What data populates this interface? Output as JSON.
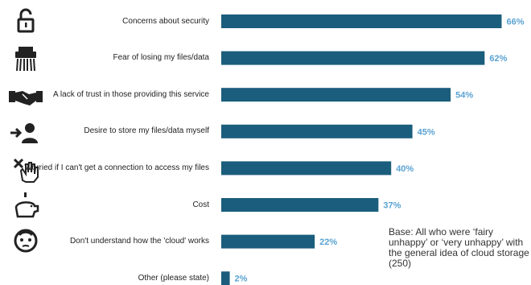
{
  "chart_data": {
    "type": "bar",
    "orientation": "horizontal",
    "categories": [
      "Concerns about security",
      "Fear of losing my files/data",
      "A lack of trust in those providing this service",
      "Desire to store my files/data myself",
      "Worried if I can't get a connection to access my files",
      "Cost",
      "Don't understand how the 'cloud' works",
      "Other (please state)"
    ],
    "values": [
      66,
      62,
      54,
      45,
      40,
      37,
      22,
      2
    ],
    "value_labels": [
      "66%",
      "62%",
      "54%",
      "45%",
      "40%",
      "37%",
      "22%",
      "2%"
    ],
    "xlim": [
      0,
      70
    ],
    "grid": false,
    "bar_color": "#1b5d7c",
    "label_color": "#5aa3d2",
    "title": "",
    "xlabel": "",
    "ylabel": ""
  },
  "icons": [
    "padlock-icon",
    "shredder-icon",
    "handshake-icon",
    "person-arrow-icon",
    "crossed-hand-icon",
    "piggy-bank-icon",
    "confused-face-icon",
    "none"
  ],
  "note": "Base: All who were ‘fairy unhappy’ or ‘very unhappy’ with the general idea of cloud storage (250)"
}
